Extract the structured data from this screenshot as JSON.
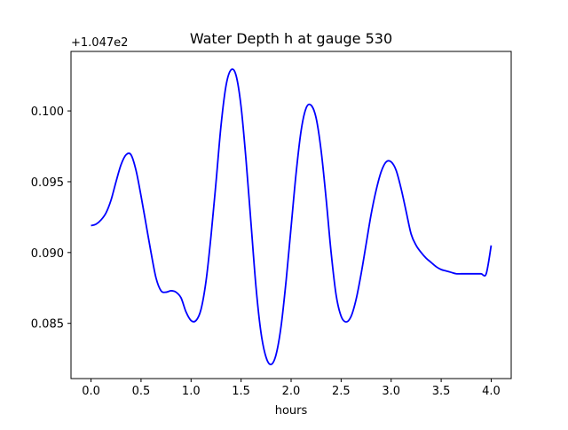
{
  "chart_data": {
    "type": "line",
    "title": "Water Depth h at gauge 530",
    "xlabel": "hours",
    "ylabel": "",
    "y_offset_label": "+1.047e2",
    "xlim": [
      -0.2,
      4.2
    ],
    "ylim": [
      0.0811,
      0.1042
    ],
    "x_ticks": [
      0.0,
      0.5,
      1.0,
      1.5,
      2.0,
      2.5,
      3.0,
      3.5,
      4.0
    ],
    "x_tick_labels": [
      "0.0",
      "0.5",
      "1.0",
      "1.5",
      "2.0",
      "2.5",
      "3.0",
      "3.5",
      "4.0"
    ],
    "y_ticks": [
      0.085,
      0.09,
      0.095,
      0.1
    ],
    "y_tick_labels": [
      "0.085",
      "0.090",
      "0.095",
      "0.100"
    ],
    "grid": false,
    "series": [
      {
        "color": "#0000ff",
        "x": [
          0.0,
          0.05,
          0.1,
          0.15,
          0.2,
          0.25,
          0.3,
          0.35,
          0.4,
          0.45,
          0.5,
          0.55,
          0.6,
          0.65,
          0.7,
          0.75,
          0.8,
          0.85,
          0.9,
          0.95,
          1.0,
          1.05,
          1.1,
          1.15,
          1.2,
          1.25,
          1.3,
          1.35,
          1.4,
          1.45,
          1.5,
          1.55,
          1.6,
          1.65,
          1.7,
          1.75,
          1.8,
          1.85,
          1.9,
          1.95,
          2.0,
          2.05,
          2.1,
          2.15,
          2.2,
          2.25,
          2.3,
          2.35,
          2.4,
          2.45,
          2.5,
          2.55,
          2.6,
          2.65,
          2.7,
          2.75,
          2.8,
          2.85,
          2.9,
          2.95,
          3.0,
          3.05,
          3.1,
          3.15,
          3.2,
          3.25,
          3.3,
          3.35,
          3.4,
          3.45,
          3.5,
          3.55,
          3.6,
          3.65,
          3.7,
          3.75,
          3.8,
          3.85,
          3.9,
          3.95,
          4.0
        ],
        "y": [
          0.0919,
          0.092,
          0.0923,
          0.0928,
          0.0937,
          0.095,
          0.0962,
          0.0969,
          0.0969,
          0.0958,
          0.094,
          0.092,
          0.09,
          0.0882,
          0.0873,
          0.0872,
          0.0873,
          0.0872,
          0.0868,
          0.0858,
          0.0852,
          0.0852,
          0.086,
          0.088,
          0.0912,
          0.095,
          0.099,
          0.1018,
          0.1029,
          0.1025,
          0.1003,
          0.0965,
          0.092,
          0.0875,
          0.0843,
          0.0826,
          0.0821,
          0.0828,
          0.0848,
          0.088,
          0.0918,
          0.0956,
          0.0986,
          0.1002,
          0.1004,
          0.0995,
          0.0972,
          0.0938,
          0.09,
          0.087,
          0.0855,
          0.0851,
          0.0855,
          0.0867,
          0.0885,
          0.0906,
          0.0927,
          0.0944,
          0.0957,
          0.0964,
          0.0964,
          0.0958,
          0.0945,
          0.0929,
          0.0913,
          0.0905,
          0.09,
          0.0896,
          0.0893,
          0.089,
          0.0888,
          0.0887,
          0.0886,
          0.0885,
          0.0885,
          0.0885,
          0.0885,
          0.0885,
          0.0885,
          0.0885,
          0.0905
        ]
      }
    ]
  }
}
